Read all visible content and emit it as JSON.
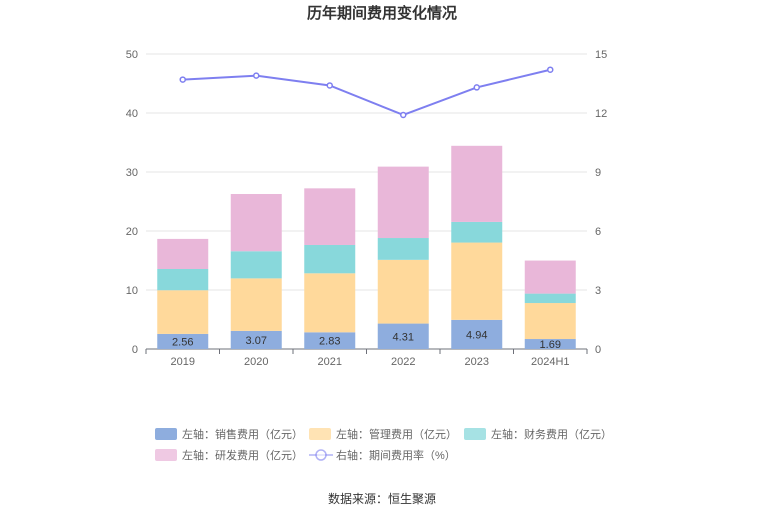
{
  "chart_data": {
    "type": "bar",
    "title": "历年期间费用变化情况",
    "categories": [
      "2019",
      "2020",
      "2021",
      "2022",
      "2023",
      "2024H1"
    ],
    "y_left_ticks": [
      "0",
      "10",
      "20",
      "30",
      "40",
      "50"
    ],
    "y_right_ticks": [
      "0",
      "3",
      "6",
      "9",
      "12",
      "15"
    ],
    "ylim_left": [
      0,
      50
    ],
    "ylim_right": [
      0,
      15
    ],
    "grid": true,
    "legend_position": "bottom",
    "series": [
      {
        "name": "左轴：销售费用（亿元）",
        "type": "bar",
        "axis": "left",
        "color": "#8eadde",
        "values": [
          2.56,
          3.07,
          2.83,
          4.31,
          4.94,
          1.69
        ],
        "labels": [
          "2.56",
          "3.07",
          "2.83",
          "4.31",
          "4.94",
          "1.69"
        ]
      },
      {
        "name": "左轴：管理费用（亿元）",
        "type": "bar",
        "axis": "left",
        "color": "#ffd99b",
        "values": [
          7.4,
          8.9,
          10.0,
          10.8,
          13.1,
          6.1
        ]
      },
      {
        "name": "左轴：财务费用（亿元）",
        "type": "bar",
        "axis": "left",
        "color": "#88d8db",
        "values": [
          3.6,
          4.6,
          4.8,
          3.7,
          3.5,
          1.6
        ]
      },
      {
        "name": "左轴：研发费用（亿元）",
        "type": "bar",
        "axis": "left",
        "color": "#e9b7d9",
        "values": [
          5.1,
          9.7,
          9.6,
          12.1,
          12.9,
          5.6
        ]
      },
      {
        "name": "右轴：期间费用率（%）",
        "type": "line",
        "axis": "right",
        "color": "#7e7ff0",
        "values": [
          13.7,
          13.9,
          13.4,
          11.9,
          13.3,
          14.2
        ]
      }
    ]
  },
  "source": "数据来源：恒生聚源"
}
